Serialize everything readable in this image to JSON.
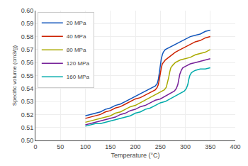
{
  "chart_data": {
    "type": "line",
    "xlabel": "Temperature (°C)",
    "ylabel": "Specific volume (cm3/g)",
    "xlim": [
      0,
      400
    ],
    "ylim": [
      0.5,
      0.6
    ],
    "xticks": [
      0,
      50,
      100,
      150,
      200,
      250,
      300,
      350,
      400
    ],
    "yticks": [
      {
        "value": 0.5,
        "label": "0.50"
      },
      0.51,
      0.52,
      0.53,
      0.54,
      0.55,
      0.56,
      0.57,
      0.58,
      0.59,
      {
        "value": 0.6,
        "label": "0.60"
      }
    ],
    "grid": true,
    "legend": "upper left",
    "series": [
      {
        "name": "20 MPa",
        "color": "#1155bb",
        "x": [
          100,
          110,
          120,
          130,
          140,
          150,
          160,
          170,
          180,
          190,
          200,
          210,
          220,
          230,
          240,
          244,
          246,
          248,
          250,
          252,
          254,
          256,
          260,
          270,
          280,
          290,
          300,
          310,
          320,
          330,
          340,
          350
        ],
        "values": [
          0.519,
          0.52,
          0.521,
          0.522,
          0.524,
          0.525,
          0.527,
          0.528,
          0.53,
          0.532,
          0.534,
          0.536,
          0.538,
          0.54,
          0.542,
          0.544,
          0.547,
          0.552,
          0.558,
          0.563,
          0.566,
          0.568,
          0.57,
          0.572,
          0.574,
          0.576,
          0.578,
          0.58,
          0.581,
          0.582,
          0.584,
          0.585
        ]
      },
      {
        "name": "40 MPa",
        "color": "#cc2200",
        "x": [
          100,
          110,
          120,
          130,
          140,
          150,
          160,
          170,
          180,
          190,
          200,
          210,
          220,
          230,
          240,
          244,
          246,
          248,
          250,
          252,
          254,
          256,
          260,
          270,
          280,
          290,
          300,
          310,
          320,
          330,
          340,
          350
        ],
        "values": [
          0.517,
          0.518,
          0.519,
          0.52,
          0.522,
          0.523,
          0.525,
          0.526,
          0.528,
          0.53,
          0.532,
          0.533,
          0.535,
          0.537,
          0.539,
          0.541,
          0.543,
          0.547,
          0.552,
          0.556,
          0.559,
          0.56,
          0.562,
          0.565,
          0.568,
          0.57,
          0.572,
          0.574,
          0.576,
          0.577,
          0.579,
          0.58
        ]
      },
      {
        "name": "80 MPa",
        "color": "#aaaa00",
        "x": [
          100,
          110,
          120,
          130,
          140,
          150,
          160,
          170,
          180,
          190,
          200,
          210,
          220,
          230,
          240,
          250,
          258,
          262,
          265,
          267,
          269,
          271,
          275,
          280,
          290,
          300,
          310,
          320,
          330,
          340,
          350
        ],
        "values": [
          0.514,
          0.515,
          0.516,
          0.517,
          0.518,
          0.519,
          0.521,
          0.522,
          0.524,
          0.526,
          0.527,
          0.529,
          0.531,
          0.533,
          0.535,
          0.537,
          0.539,
          0.541,
          0.545,
          0.549,
          0.553,
          0.556,
          0.558,
          0.56,
          0.562,
          0.563,
          0.564,
          0.566,
          0.567,
          0.568,
          0.57
        ]
      },
      {
        "name": "120 MPa",
        "color": "#772299",
        "x": [
          100,
          110,
          120,
          130,
          140,
          150,
          160,
          170,
          180,
          190,
          200,
          210,
          220,
          230,
          240,
          250,
          260,
          270,
          278,
          282,
          285,
          287,
          289,
          292,
          295,
          300,
          310,
          320,
          330,
          340,
          350
        ],
        "values": [
          0.512,
          0.513,
          0.514,
          0.515,
          0.516,
          0.517,
          0.518,
          0.52,
          0.521,
          0.523,
          0.524,
          0.526,
          0.527,
          0.529,
          0.531,
          0.532,
          0.534,
          0.536,
          0.538,
          0.54,
          0.543,
          0.547,
          0.551,
          0.554,
          0.556,
          0.557,
          0.559,
          0.56,
          0.561,
          0.562,
          0.563
        ]
      },
      {
        "name": "160 MPa",
        "color": "#00aaaa",
        "x": [
          100,
          110,
          120,
          130,
          140,
          150,
          160,
          170,
          180,
          190,
          200,
          210,
          220,
          230,
          240,
          250,
          260,
          270,
          280,
          290,
          298,
          302,
          305,
          307,
          309,
          312,
          315,
          320,
          330,
          340,
          350
        ],
        "values": [
          0.511,
          0.512,
          0.513,
          0.513,
          0.514,
          0.515,
          0.516,
          0.517,
          0.518,
          0.519,
          0.521,
          0.522,
          0.524,
          0.525,
          0.527,
          0.529,
          0.53,
          0.532,
          0.534,
          0.536,
          0.538,
          0.54,
          0.543,
          0.547,
          0.55,
          0.552,
          0.553,
          0.554,
          0.555,
          0.555,
          0.556
        ]
      }
    ]
  }
}
